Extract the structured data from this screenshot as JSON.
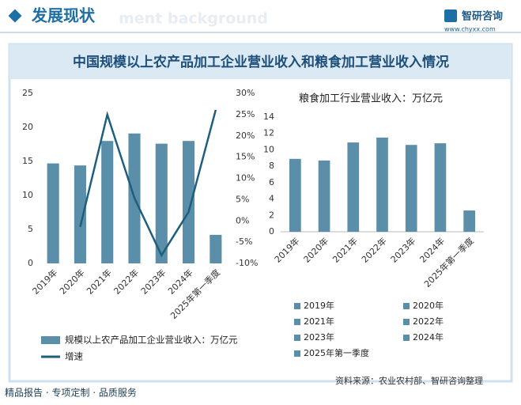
{
  "header": {
    "title": "发展现状",
    "background_text": "ment background",
    "brand": "智研咨询",
    "url": "www.chyxx.com"
  },
  "banner_title": "中国规模以上农产品加工企业营业收入和粮食加工营业收入情况",
  "chart_data": [
    {
      "type": "bar",
      "categories": [
        "2019年",
        "2020年",
        "2021年",
        "2022年",
        "2023年",
        "2024年",
        "2025年第一季度"
      ],
      "series": [
        {
          "name": "规模以上农产品加工企业营业收入：万亿元",
          "type": "bar",
          "color": "#5b8ea8",
          "values": [
            14.7,
            14.4,
            18.0,
            19.1,
            17.6,
            18.0,
            4.2
          ]
        },
        {
          "name": "增速",
          "type": "line",
          "axis": "y2",
          "color": "#1d5f7c",
          "values": [
            null,
            -1.4,
            25.0,
            5.4,
            -8.1,
            2.1,
            26.1
          ]
        }
      ],
      "ylim": [
        0,
        25
      ],
      "yticks": [
        0,
        5,
        10,
        15,
        20,
        25
      ],
      "y2lim": [
        -10,
        30
      ],
      "y2ticks": [
        {
          "value": -10,
          "label": "-10%"
        },
        {
          "value": -5,
          "label": "-5%"
        },
        {
          "value": 0,
          "label": "0%"
        },
        {
          "value": 5,
          "label": "5%"
        },
        {
          "value": 10,
          "label": "10%"
        },
        {
          "value": 15,
          "label": "15%"
        },
        {
          "value": 20,
          "label": "20%"
        },
        {
          "value": 25,
          "label": "25%"
        },
        {
          "value": 30,
          "label": "30%"
        }
      ]
    },
    {
      "type": "bar",
      "title": "粮食加工行业营业收入：万亿元",
      "categories": [
        "2019年",
        "2020年",
        "2021年",
        "2022年",
        "2023年",
        "2024年",
        "2025年第一季度"
      ],
      "values": [
        8.9,
        8.7,
        10.9,
        11.5,
        10.6,
        10.8,
        2.6
      ],
      "color": "#5b8ea8",
      "ylim": [
        0,
        14
      ],
      "yticks": [
        0,
        2,
        4,
        6,
        8,
        10,
        12,
        14
      ]
    }
  ],
  "footer": {
    "slogan": "精品报告 · 专项定制 · 品质服务",
    "source": "资料来源：农业农村部、智研咨询整理"
  }
}
